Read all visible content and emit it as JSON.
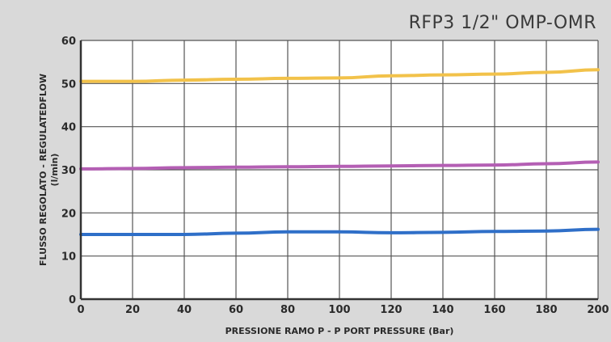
{
  "chart_data": {
    "type": "line",
    "title": "RFP3 1/2\" OMP-OMR",
    "xlabel": "PRESSIONE RAMO P - P PORT PRESSURE (Bar)",
    "ylabel_line1": "FLUSSO REGOLATO - REGULATEDFLOW",
    "ylabel_line2": "(l/min)",
    "xlim": [
      0,
      200
    ],
    "ylim": [
      0,
      60
    ],
    "xticks": [
      0,
      20,
      40,
      60,
      80,
      100,
      120,
      140,
      160,
      180,
      200
    ],
    "yticks": [
      0,
      10,
      20,
      30,
      40,
      50,
      60
    ],
    "grid": true,
    "x": [
      0,
      20,
      40,
      60,
      80,
      100,
      120,
      140,
      160,
      180,
      200
    ],
    "series": [
      {
        "color": "#f2c24a",
        "values": [
          50.5,
          50.5,
          50.8,
          51.0,
          51.2,
          51.3,
          51.8,
          52.0,
          52.2,
          52.6,
          53.2
        ]
      },
      {
        "color": "#b45fb4",
        "values": [
          30.2,
          30.3,
          30.5,
          30.6,
          30.7,
          30.8,
          30.9,
          31.0,
          31.1,
          31.4,
          31.8
        ]
      },
      {
        "color": "#2f6fc8",
        "values": [
          15.0,
          15.0,
          15.0,
          15.3,
          15.6,
          15.6,
          15.4,
          15.5,
          15.7,
          15.8,
          16.2
        ]
      }
    ]
  }
}
